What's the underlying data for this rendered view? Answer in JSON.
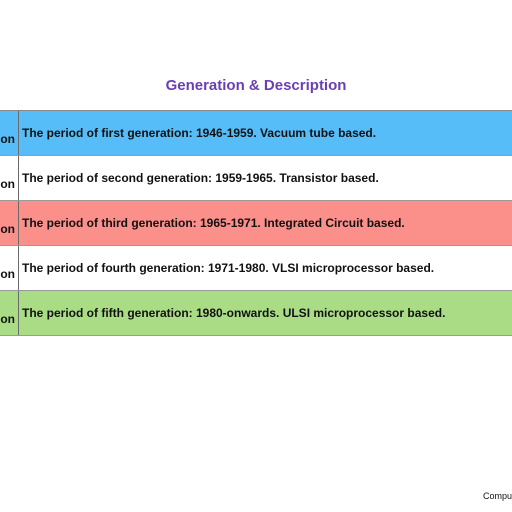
{
  "header": {
    "title": "Generation & Description"
  },
  "colors": {
    "title": "#6a3fb4",
    "row_blue": "#57bdf8",
    "row_white": "#ffffff",
    "row_red": "#fb8f8a",
    "row_green": "#aadc86"
  },
  "rows": [
    {
      "left_label": "on",
      "description": "The period of first generation: 1946-1959. Vacuum tube based.",
      "bg": "#57bdf8"
    },
    {
      "left_label": "on",
      "description": "The period of second generation: 1959-1965. Transistor based.",
      "bg": "#ffffff"
    },
    {
      "left_label": "on",
      "description": "The period of third generation: 1965-1971. Integrated Circuit based.",
      "bg": "#fb8f8a"
    },
    {
      "left_label": "on",
      "description": "The period of fourth generation: 1971-1980. VLSI microprocessor based.",
      "bg": "#ffffff"
    },
    {
      "left_label": "on",
      "description": "The period of fifth generation: 1980-onwards. ULSI microprocessor based.",
      "bg": "#aadc86"
    }
  ],
  "footer": {
    "text": "Compu"
  }
}
